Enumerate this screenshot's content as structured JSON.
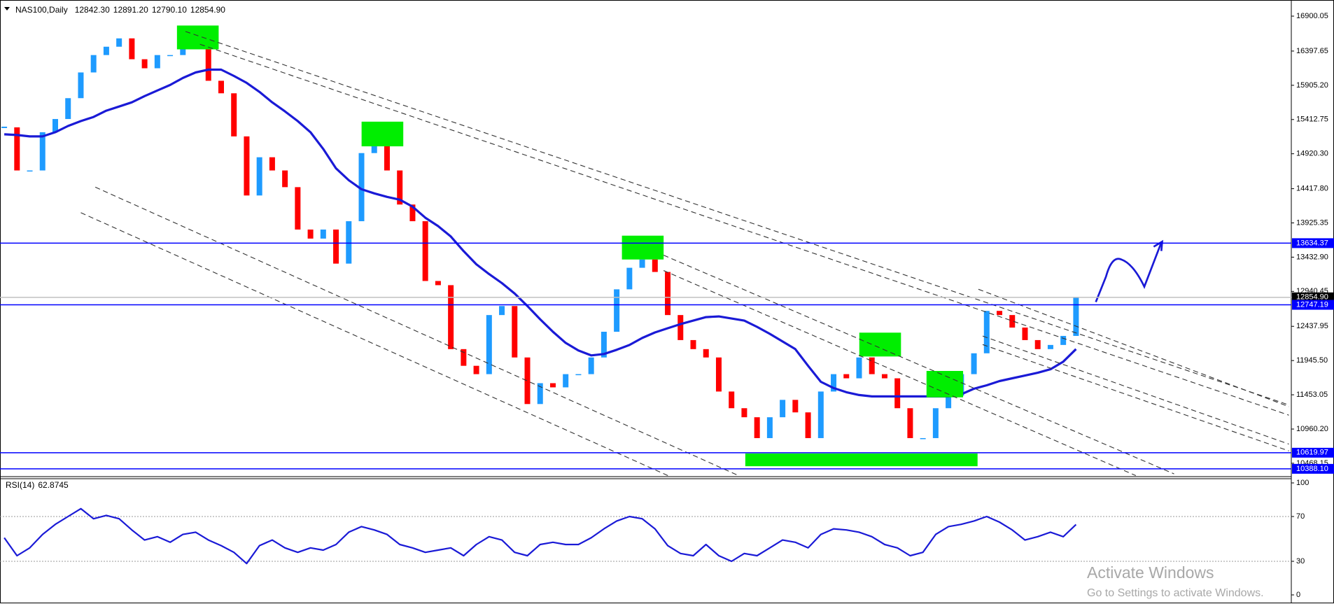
{
  "chart_data": {
    "type": "candlestick",
    "title": "NAS100,Daily",
    "ohlc": [
      "12842.30",
      "12891.20",
      "12790.10",
      "12854.90"
    ],
    "up_color": "#1e9bff",
    "down_color": "#ff0000",
    "close": [
      15300,
      14680,
      14680,
      15230,
      15420,
      15720,
      16090,
      16340,
      16460,
      16580,
      16280,
      16150,
      16340,
      16340,
      16580,
      16460,
      15970,
      15790,
      15170,
      14320,
      14870,
      14680,
      14440,
      13830,
      13700,
      13830,
      13340,
      13950,
      14930,
      15170,
      14680,
      14190,
      13950,
      13090,
      13030,
      12110,
      11870,
      11750,
      12600,
      12730,
      11990,
      11320,
      11620,
      11560,
      11750,
      11750,
      11990,
      12360,
      12970,
      13280,
      13400,
      13220,
      12600,
      12240,
      12110,
      11990,
      11500,
      11260,
      11130,
      10830,
      11130,
      11380,
      11200,
      10830,
      11500,
      11750,
      11690,
      11990,
      11750,
      11690,
      11260,
      10830,
      10830,
      11260,
      11440,
      11750,
      12050,
      12660,
      12600,
      12420,
      12240,
      12110,
      12170,
      12300,
      12854.9
    ],
    "moving_average": {
      "color": "#1a1ad6",
      "values": [
        15200,
        15190,
        15170,
        15170,
        15230,
        15320,
        15390,
        15450,
        15540,
        15600,
        15660,
        15750,
        15830,
        15910,
        16010,
        16090,
        16130,
        16130,
        16040,
        15940,
        15810,
        15660,
        15530,
        15390,
        15230,
        14990,
        14710,
        14540,
        14410,
        14350,
        14300,
        14260,
        14160,
        14000,
        13880,
        13730,
        13520,
        13330,
        13190,
        13060,
        12910,
        12730,
        12540,
        12360,
        12200,
        12090,
        12020,
        12040,
        12100,
        12170,
        12270,
        12350,
        12410,
        12470,
        12520,
        12570,
        12580,
        12550,
        12520,
        12430,
        12330,
        12220,
        12110,
        11870,
        11640,
        11550,
        11490,
        11450,
        11430,
        11430,
        11430,
        11430,
        11430,
        11430,
        11430,
        11460,
        11540,
        11590,
        11650,
        11690,
        11730,
        11770,
        11820,
        11930,
        12110
      ]
    },
    "ylim": [
      10286,
      17132
    ],
    "yticks": [
      16900.05,
      16397.65,
      {
        "value": 15905.2,
        "label": "15905.20"
      },
      15412.75,
      {
        "value": 14920.3,
        "label": "14920.30"
      },
      {
        "value": 14417.8,
        "label": "14417.80"
      },
      13925.35,
      {
        "value": 13432.9,
        "label": "13432.90"
      },
      12940.45,
      12437.95,
      {
        "value": 11945.5,
        "label": "11945.50"
      },
      11453.05,
      {
        "value": 10960.2,
        "label": "10960.20"
      },
      10468.15
    ],
    "levels": [
      {
        "value": 13634.37,
        "color": "#0000ff",
        "box": "#0000ff"
      },
      {
        "value": 12854.9,
        "label": "12854.90",
        "color": "#c0c0c0",
        "box": "#000000"
      },
      {
        "value": 12747.19,
        "color": "#0000ff",
        "box": "#0000ff"
      },
      {
        "value": 10619.97,
        "color": "#0000ff",
        "box": "#0000ff"
      },
      {
        "value": 10388.1,
        "label": "10388.10",
        "color": "#0000ff",
        "box": "#0000ff"
      }
    ],
    "rsi": {
      "title": "RSI(14)",
      "color": "#1a1ad6",
      "ylim": [
        0,
        100
      ],
      "yticks": [
        0,
        30,
        70,
        100
      ],
      "values": [
        51,
        35,
        42,
        54,
        63,
        70,
        77,
        68,
        71,
        68,
        58,
        49,
        52,
        47,
        54,
        56,
        49,
        44,
        38,
        28,
        44,
        49,
        42,
        38,
        42,
        40,
        45,
        56,
        61,
        58,
        54,
        45,
        42,
        38,
        40,
        42,
        35,
        45,
        52,
        49,
        38,
        35,
        45,
        47,
        45,
        45,
        51,
        59,
        66,
        70,
        68,
        59,
        44,
        37,
        35,
        45,
        35,
        30,
        37,
        35,
        42,
        49,
        47,
        42,
        54,
        59,
        58,
        56,
        52,
        45,
        42,
        35,
        38,
        54,
        61,
        63,
        66,
        70,
        65,
        58,
        49,
        52,
        56,
        52,
        62.8745
      ]
    }
  },
  "watermark": {
    "title": "Activate Windows",
    "subtitle": "Go to Settings to activate Windows."
  }
}
